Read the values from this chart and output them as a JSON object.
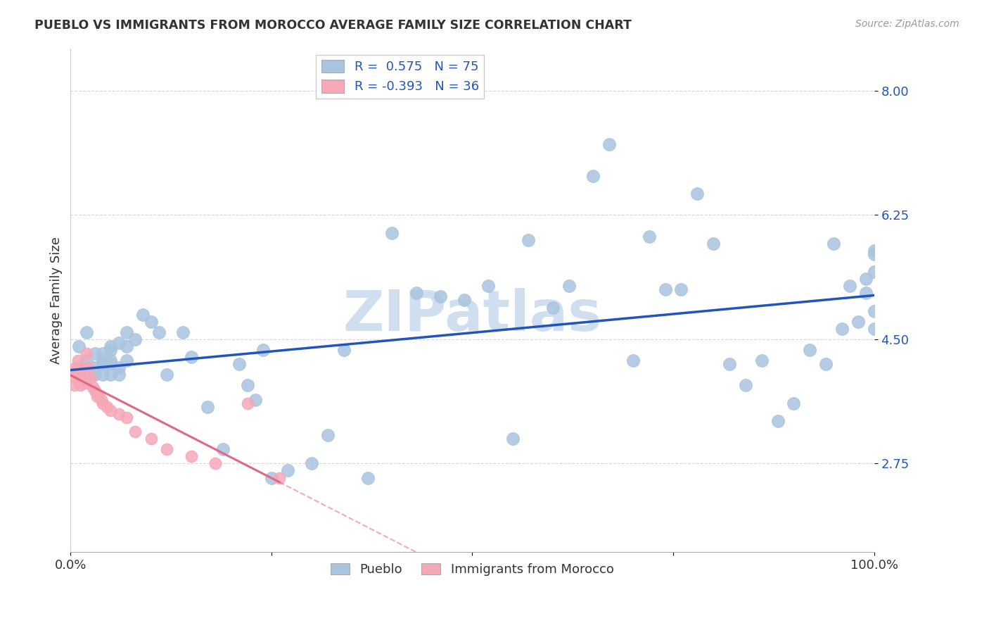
{
  "title": "PUEBLO VS IMMIGRANTS FROM MOROCCO AVERAGE FAMILY SIZE CORRELATION CHART",
  "source": "Source: ZipAtlas.com",
  "ylabel": "Average Family Size",
  "xlim": [
    0.0,
    1.0
  ],
  "ylim": [
    1.5,
    8.6
  ],
  "yticks": [
    2.75,
    4.5,
    6.25,
    8.0
  ],
  "yticklabels": [
    "2.75",
    "4.50",
    "6.25",
    "8.00"
  ],
  "xticks": [
    0.0,
    0.25,
    0.5,
    0.75,
    1.0
  ],
  "xticklabels": [
    "0.0%",
    "",
    "",
    "",
    "100.0%"
  ],
  "blue_R": 0.575,
  "blue_N": 75,
  "pink_R": -0.393,
  "pink_N": 36,
  "blue_color": "#aac4e0",
  "pink_color": "#f4a8b8",
  "blue_line_color": "#2255bb",
  "pink_line_color": "#e06880",
  "watermark": "ZIPatlas",
  "watermark_color": "#d0dff0",
  "legend_label_blue": "Pueblo",
  "legend_label_pink": "Immigrants from Morocco",
  "blue_x": [
    0.01,
    0.02,
    0.02,
    0.03,
    0.03,
    0.03,
    0.04,
    0.04,
    0.04,
    0.04,
    0.05,
    0.05,
    0.05,
    0.05,
    0.05,
    0.06,
    0.06,
    0.06,
    0.07,
    0.07,
    0.07,
    0.08,
    0.09,
    0.1,
    0.11,
    0.12,
    0.14,
    0.15,
    0.17,
    0.19,
    0.21,
    0.22,
    0.23,
    0.24,
    0.25,
    0.27,
    0.3,
    0.32,
    0.34,
    0.37,
    0.4,
    0.43,
    0.46,
    0.49,
    0.52,
    0.55,
    0.57,
    0.6,
    0.62,
    0.65,
    0.67,
    0.7,
    0.72,
    0.74,
    0.76,
    0.78,
    0.8,
    0.82,
    0.84,
    0.86,
    0.88,
    0.9,
    0.92,
    0.94,
    0.95,
    0.96,
    0.97,
    0.98,
    0.99,
    0.99,
    1.0,
    1.0,
    1.0,
    1.0,
    1.0
  ],
  "blue_y": [
    4.4,
    4.6,
    4.2,
    4.1,
    4.0,
    4.3,
    4.2,
    4.0,
    4.3,
    4.15,
    4.4,
    4.2,
    4.0,
    4.15,
    4.35,
    4.1,
    4.0,
    4.45,
    4.6,
    4.4,
    4.2,
    4.5,
    4.85,
    4.75,
    4.6,
    4.0,
    4.6,
    4.25,
    3.55,
    2.95,
    4.15,
    3.85,
    3.65,
    4.35,
    2.55,
    2.65,
    2.75,
    3.15,
    4.35,
    2.55,
    6.0,
    5.15,
    5.1,
    5.05,
    5.25,
    3.1,
    5.9,
    4.95,
    5.25,
    6.8,
    7.25,
    4.2,
    5.95,
    5.2,
    5.2,
    6.55,
    5.85,
    4.15,
    3.85,
    4.2,
    3.35,
    3.6,
    4.35,
    4.15,
    5.85,
    4.65,
    5.25,
    4.75,
    5.15,
    5.35,
    4.65,
    4.9,
    5.75,
    5.45,
    5.7
  ],
  "pink_x": [
    0.005,
    0.005,
    0.006,
    0.007,
    0.008,
    0.009,
    0.01,
    0.011,
    0.012,
    0.013,
    0.014,
    0.015,
    0.016,
    0.017,
    0.018,
    0.019,
    0.02,
    0.022,
    0.025,
    0.028,
    0.03,
    0.033,
    0.035,
    0.038,
    0.04,
    0.045,
    0.05,
    0.06,
    0.07,
    0.08,
    0.1,
    0.12,
    0.15,
    0.18,
    0.22,
    0.26
  ],
  "pink_y": [
    4.05,
    3.85,
    4.1,
    3.95,
    4.05,
    4.2,
    3.9,
    4.1,
    3.85,
    4.05,
    3.95,
    3.88,
    4.08,
    3.98,
    3.88,
    4.0,
    4.3,
    4.1,
    3.95,
    3.82,
    3.78,
    3.7,
    3.72,
    3.65,
    3.6,
    3.55,
    3.5,
    3.45,
    3.4,
    3.2,
    3.1,
    2.95,
    2.85,
    2.75,
    3.6,
    2.55
  ]
}
